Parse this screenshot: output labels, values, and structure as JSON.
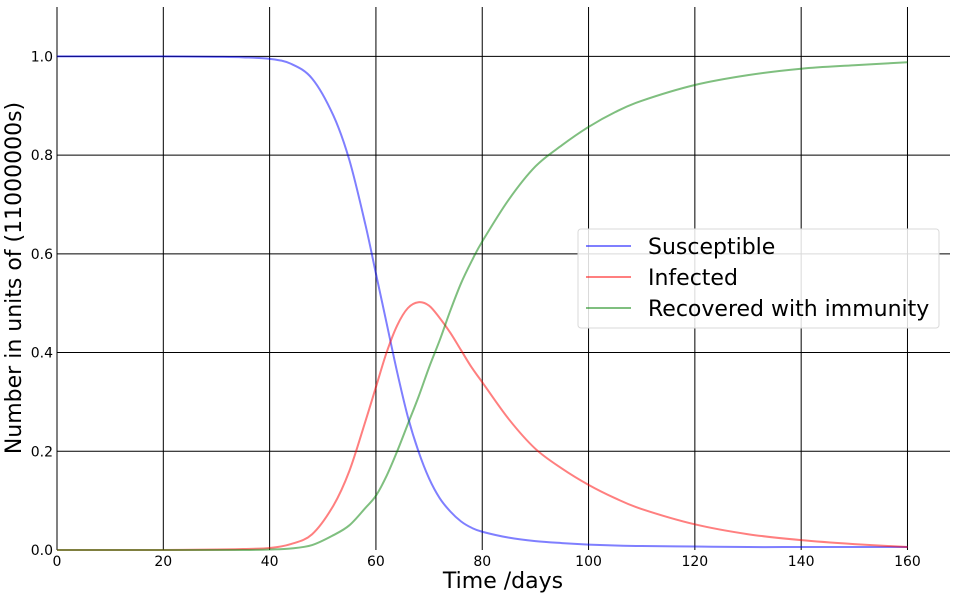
{
  "chart_data": {
    "type": "line",
    "xlabel": "Time /days",
    "ylabel": "Number in units of (11000000s)",
    "xlim": [
      0,
      168
    ],
    "ylim": [
      0,
      1.1
    ],
    "xticks": [
      "0",
      "20",
      "40",
      "60",
      "80",
      "100",
      "120",
      "140",
      "160"
    ],
    "yticks": [
      "0.0",
      "0.2",
      "0.4",
      "0.6",
      "0.8",
      "1.0"
    ],
    "grid": true,
    "legend_position": "center-right",
    "x": [
      0,
      10,
      20,
      30,
      35,
      40,
      44,
      48,
      52,
      55,
      58,
      60,
      62,
      64,
      66,
      68,
      70,
      72,
      74,
      76,
      78,
      80,
      85,
      90,
      95,
      100,
      105,
      110,
      120,
      130,
      140,
      150,
      160
    ],
    "series": [
      {
        "name": "Susceptible",
        "color": "#0000ff",
        "values": [
          1.0,
          1.0,
          1.0,
          0.999,
          0.998,
          0.995,
          0.985,
          0.955,
          0.88,
          0.79,
          0.66,
          0.56,
          0.46,
          0.36,
          0.27,
          0.2,
          0.145,
          0.105,
          0.078,
          0.058,
          0.045,
          0.037,
          0.025,
          0.018,
          0.014,
          0.011,
          0.009,
          0.008,
          0.007,
          0.006,
          0.006,
          0.006,
          0.006
        ]
      },
      {
        "name": "Infected",
        "color": "#ff0000",
        "values": [
          0.0,
          0.0,
          0.0,
          0.001,
          0.002,
          0.004,
          0.012,
          0.032,
          0.09,
          0.16,
          0.26,
          0.33,
          0.4,
          0.455,
          0.49,
          0.502,
          0.495,
          0.47,
          0.44,
          0.405,
          0.37,
          0.34,
          0.265,
          0.205,
          0.165,
          0.132,
          0.105,
          0.083,
          0.052,
          0.032,
          0.02,
          0.012,
          0.006
        ]
      },
      {
        "name": "Recovered with immunity",
        "color": "#008000",
        "values": [
          0.0,
          0.0,
          0.0,
          0.0,
          0.0,
          0.001,
          0.003,
          0.01,
          0.03,
          0.05,
          0.085,
          0.11,
          0.15,
          0.2,
          0.255,
          0.31,
          0.37,
          0.425,
          0.485,
          0.54,
          0.585,
          0.625,
          0.71,
          0.777,
          0.82,
          0.857,
          0.887,
          0.91,
          0.942,
          0.962,
          0.975,
          0.982,
          0.988
        ]
      }
    ]
  }
}
